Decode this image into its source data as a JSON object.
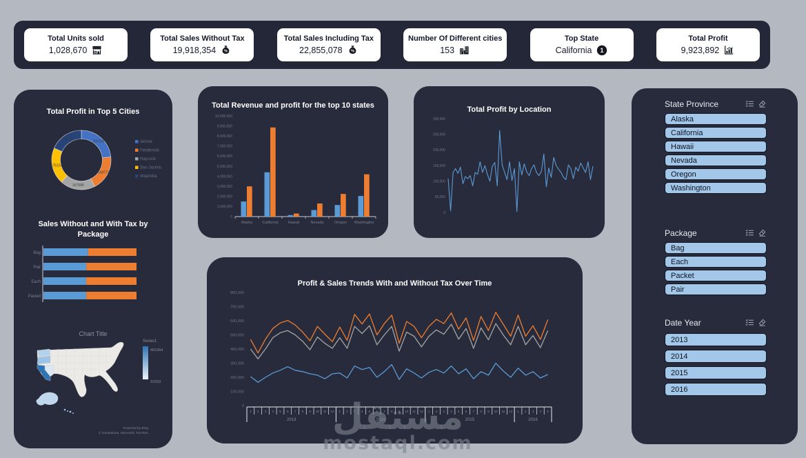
{
  "colors": {
    "background": "#b4b8c1",
    "panel": "#282b3c",
    "kpi_bar": "#242737",
    "card": "#ffffff",
    "card_text": "#14172a",
    "title_text": "#ffffff",
    "axis_text": "#6f7482",
    "category_text": "#787f8d",
    "slicer_item_bg": "#a2c7e9",
    "slicer_item_text": "#10131f",
    "blue": "#5b9bd5",
    "orange": "#ed7d31",
    "gray": "#a5a5a5",
    "yellow": "#ffc000",
    "dark_blue": "#264478",
    "watermark": "#7d838e"
  },
  "kpis": [
    {
      "label": "Total Units sold",
      "value": "1,028,670",
      "icon": "storefront-icon"
    },
    {
      "label": "Total Sales Without Tax",
      "value": "19,918,354",
      "icon": "money-bag-icon"
    },
    {
      "label": "Total Sales Including Tax",
      "value": "22,855,078",
      "icon": "money-bag-icon"
    },
    {
      "label": "Number Of Different cities",
      "value": "153",
      "icon": "buildings-icon"
    },
    {
      "label": "Top State",
      "value": "California",
      "icon": "rank-one-icon"
    },
    {
      "label": "Total Profit",
      "value": "9,923,892",
      "icon": "bar-chart-icon"
    }
  ],
  "slicers": [
    {
      "title": "State Province",
      "header_icons": [
        "multi-select-icon",
        "clear-selections-icon"
      ],
      "items": [
        "Alaska",
        "California",
        "Hawaii",
        "Nevada",
        "Oregon",
        "Washington"
      ]
    },
    {
      "title": "Package",
      "header_icons": [
        "multi-select-icon",
        "clear-selections-icon"
      ],
      "items": [
        "Bag",
        "Each",
        "Packet",
        "Pair"
      ]
    },
    {
      "title": "Date Year",
      "header_icons": [
        "multi-select-icon",
        "clear-selections-icon"
      ],
      "items": [
        "2013",
        "2014",
        "2015",
        "2016"
      ]
    }
  ],
  "watermark": {
    "arabic": "مستقل",
    "latin": "mostaql.com"
  },
  "chart_data": [
    {
      "id": "profit-top5-cities-donut",
      "type": "pie",
      "donut": true,
      "title": "Total Profit in  Top 5 Cities",
      "categories": [
        "Akhiok",
        "Fieldbrook",
        "Haycock",
        "San Jacinto",
        "Wapinitia"
      ],
      "values": [
        205254,
        168772,
        167999,
        175154,
        162185
      ],
      "colors": [
        "#4472c4",
        "#ed7d31",
        "#a5a5a5",
        "#ffc000",
        "#264478"
      ],
      "legend_position": "right"
    },
    {
      "id": "package-sales-stacked-bar",
      "type": "bar",
      "orientation": "horizontal-stacked",
      "title": "Sales Without and With Tax by Package",
      "categories": [
        "Bag",
        "Pair",
        "Each",
        "Packet"
      ],
      "values_unit": "relative-percent-of-row",
      "series": [
        {
          "name": "Sales Without Tax",
          "color": "#5b9bd5",
          "values": [
            48,
            46,
            46,
            46
          ]
        },
        {
          "name": "Sales With Tax",
          "color": "#ed7d31",
          "values": [
            52,
            54,
            54,
            54
          ]
        }
      ]
    },
    {
      "id": "state-revenue-profit-bar",
      "type": "bar",
      "title": "Total Revenue and profit for the top 10 states",
      "categories": [
        "Alaska",
        "California",
        "Hawaii",
        "Nevada",
        "Oregon",
        "Washington"
      ],
      "ylim": [
        0,
        10000000
      ],
      "ytick_step": 1000000,
      "grid": false,
      "series": [
        {
          "name": "Profit",
          "color": "#5b9bd5",
          "values": [
            1500000,
            4400000,
            150000,
            650000,
            1150000,
            2050000
          ]
        },
        {
          "name": "Revenue",
          "color": "#ed7d31",
          "values": [
            3000000,
            8850000,
            300000,
            1300000,
            2250000,
            4200000
          ]
        }
      ]
    },
    {
      "id": "profit-by-location-line",
      "type": "line",
      "title": "Total Profit by Location",
      "ylim": [
        0,
        300000
      ],
      "ytick_step": 50000,
      "grid": false,
      "color": "#5b9bd5",
      "values": [
        108000,
        5000,
        128000,
        140000,
        125000,
        145000,
        92000,
        115000,
        108000,
        118000,
        85000,
        128000,
        122000,
        162000,
        128000,
        150000,
        122000,
        100000,
        148000,
        160000,
        85000,
        262000,
        152000,
        128000,
        105000,
        162000,
        102000,
        140000,
        3000,
        162000,
        120000,
        155000,
        130000,
        118000,
        140000,
        152000,
        128000,
        118000,
        132000,
        187000,
        82000,
        142000,
        112000,
        176000,
        150000,
        138000,
        128000,
        112000,
        105000,
        152000,
        140000,
        108000,
        145000,
        132000,
        158000,
        143000,
        128000,
        162000,
        105000,
        148000
      ]
    },
    {
      "id": "profit-sales-trends-line",
      "type": "line",
      "title": "Profit & Sales Trends With and Without Tax Over Time",
      "ylim": [
        0,
        800000
      ],
      "ytick_step": 100000,
      "grid": false,
      "x_axis": {
        "years": [
          {
            "label": "2013",
            "months": 12
          },
          {
            "label": "2014",
            "months": 12
          },
          {
            "label": "2015",
            "months": 12
          },
          {
            "label": "2016",
            "months": 5
          }
        ]
      },
      "series": [
        {
          "name": "Sales With Tax",
          "color": "#ed7d31",
          "values": [
            468000,
            372000,
            470000,
            545000,
            585000,
            602000,
            570000,
            520000,
            458000,
            560000,
            505000,
            452000,
            555000,
            462000,
            645000,
            577000,
            648000,
            500000,
            580000,
            640000,
            440000,
            595000,
            560000,
            480000,
            560000,
            610000,
            580000,
            655000,
            540000,
            620000,
            460000,
            630000,
            530000,
            660000,
            575000,
            490000,
            640000,
            490000,
            565000,
            468000,
            608000
          ]
        },
        {
          "name": "Sales Without Tax",
          "color": "#a5a5a5",
          "values": [
            400000,
            330000,
            400000,
            480000,
            515000,
            530000,
            500000,
            455000,
            395000,
            485000,
            440000,
            405000,
            480000,
            405000,
            560000,
            510000,
            565000,
            430000,
            500000,
            560000,
            385000,
            520000,
            490000,
            415000,
            490000,
            535000,
            505000,
            575000,
            470000,
            545000,
            405000,
            550000,
            465000,
            580000,
            500000,
            430000,
            560000,
            430000,
            495000,
            410000,
            530000
          ]
        },
        {
          "name": "Profit",
          "color": "#5b9bd5",
          "values": [
            205000,
            165000,
            200000,
            230000,
            250000,
            275000,
            250000,
            240000,
            225000,
            215000,
            190000,
            225000,
            230000,
            195000,
            280000,
            255000,
            270000,
            200000,
            240000,
            290000,
            185000,
            260000,
            230000,
            195000,
            235000,
            255000,
            230000,
            280000,
            225000,
            260000,
            190000,
            240000,
            215000,
            300000,
            245000,
            200000,
            265000,
            215000,
            240000,
            195000,
            220000
          ]
        }
      ]
    },
    {
      "id": "state-map",
      "type": "heatmap",
      "subtype": "choropleth-map",
      "title": "Chart Title",
      "legend_title": "Series1",
      "max_label": "461064",
      "min_label": "15293",
      "attribution": [
        "Powered by Bing",
        "© GeoNames, Microsoft, TomTom"
      ],
      "states": [
        {
          "name": "California",
          "color": "#2e75b6"
        },
        {
          "name": "Oregon",
          "color": "#9cc3e5"
        },
        {
          "name": "Washington",
          "color": "#b3d2ec"
        },
        {
          "name": "Nevada",
          "color": "#dcе9f5"
        },
        {
          "name": "Alaska",
          "color": "#c0d8ee"
        },
        {
          "name": "Hawaii",
          "color": "#9cc3e5"
        }
      ]
    }
  ]
}
